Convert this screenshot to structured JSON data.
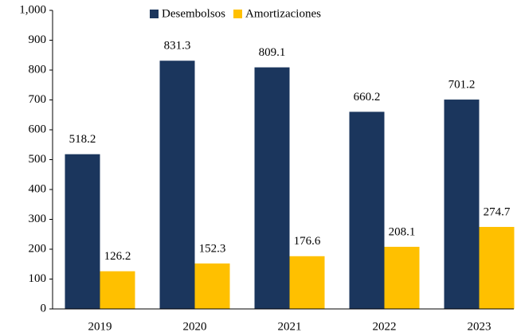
{
  "chart_data": {
    "type": "bar",
    "categories": [
      "2019",
      "2020",
      "2021",
      "2022",
      "2023"
    ],
    "series": [
      {
        "name": "Desembolsos",
        "color": "#1b365d",
        "values": [
          518.2,
          831.3,
          809.1,
          660.2,
          701.2
        ]
      },
      {
        "name": "Amortizaciones",
        "color": "#ffc000",
        "values": [
          126.2,
          152.3,
          176.6,
          208.1,
          274.7
        ]
      }
    ],
    "ylim": [
      0,
      1000
    ],
    "yticks": [
      0,
      100,
      200,
      300,
      400,
      500,
      600,
      700,
      800,
      900,
      {
        "value": 1000,
        "label": "1,000"
      }
    ],
    "legend": "top"
  }
}
